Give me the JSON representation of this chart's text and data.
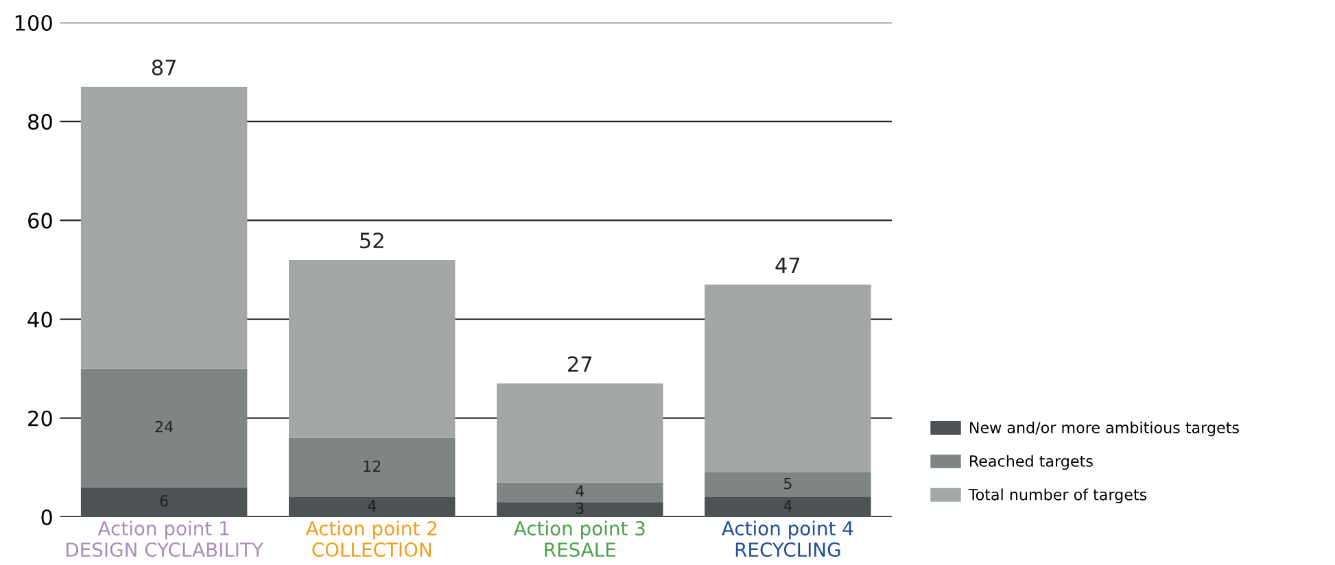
{
  "chart_data": {
    "type": "bar",
    "stacked": true,
    "categories": [
      "Action point 1\nDESIGN CYCLABILITY",
      "Action point 2\nCOLLECTION",
      "Action point 3\nRESALE",
      "Action point 4\nRECYCLING"
    ],
    "series": [
      {
        "name": "New and/or more ambitious targets",
        "color": "#4d5254",
        "values": [
          6,
          4,
          3,
          4
        ],
        "value_labels": [
          "6",
          "4",
          "3",
          "4"
        ]
      },
      {
        "name": "Reached targets",
        "color": "#7f8584",
        "values": [
          24,
          12,
          4,
          5
        ],
        "value_labels": [
          "24",
          "12",
          "4",
          "5"
        ]
      },
      {
        "name": "Total number of targets",
        "color": "#a3a8a7",
        "values": [
          57,
          36,
          20,
          38
        ]
      }
    ],
    "totals": [
      "87",
      "52",
      "27",
      "47"
    ],
    "ylim": [
      0,
      100
    ],
    "yticks": [
      0,
      20,
      40,
      60,
      80,
      100
    ],
    "grid": "y",
    "legend": "bottom right"
  }
}
